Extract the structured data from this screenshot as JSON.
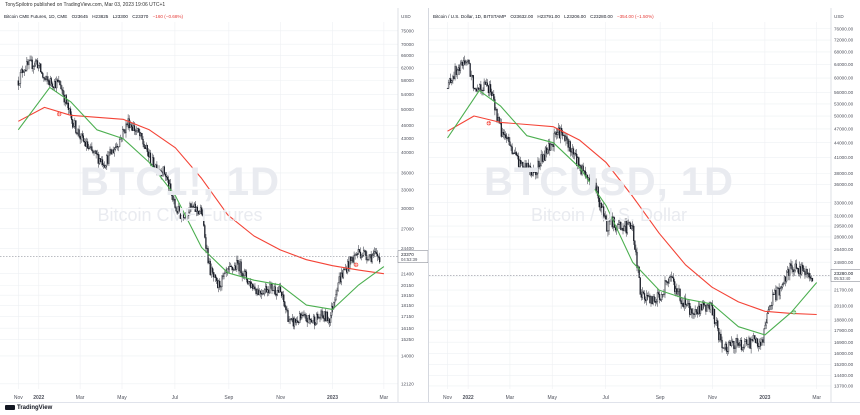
{
  "header": {
    "text": "TonySpilotro published on TradingView.com, Mar 03, 2023 19:06 UTC+1"
  },
  "footer": {
    "logo_text": "TradingView"
  },
  "colors": {
    "up": "#131722",
    "ma_fast": "#4caf50",
    "ma_slow": "#f44336",
    "grid": "#eef0f3"
  },
  "panels": [
    {
      "legend": {
        "name": "Bitcoin CME Futures, 1D, CME",
        "o": "O23645",
        "h": "H23825",
        "l": "L23300",
        "c": "C23370",
        "chg": "−160 (−0.68%)"
      },
      "watermark": {
        "symbol": "BTC1!, 1D",
        "description": "Bitcoin CME Futures"
      },
      "price_label": "23370",
      "countdown": "04:53:39"
    },
    {
      "legend": {
        "name": "Bitcoin / U.S. Dollar, 1D, BITSTAMP",
        "o": "O23632.00",
        "h": "H23791.00",
        "l": "L23206.00",
        "c": "C23280.00",
        "chg": "−354.00 (−1.50%)"
      },
      "watermark": {
        "symbol": "BTCUSD, 1D",
        "description": "Bitcoin / U.S. Dollar"
      },
      "price_label": "23280.00",
      "countdown": "05:53:40"
    }
  ],
  "chart_data": [
    {
      "type": "candlestick",
      "title": "Bitcoin CME Futures, 1D, CME",
      "currency": "USD",
      "y_scale": "log",
      "ylim": [
        11800,
        78500
      ],
      "y_ticks": [
        "75000",
        "70000",
        "66000",
        "62000",
        "58000",
        "54000",
        "50000",
        "46000",
        "43000",
        "40000",
        "36000",
        "33000",
        "30000",
        "27000",
        "24400",
        "21400",
        "20150",
        "19150",
        "18150",
        "17150",
        "16150",
        "15250",
        "14000",
        "12120"
      ],
      "x_ticks": [
        "Nov",
        "2022",
        "Mar",
        "May",
        "Jul",
        "Sep",
        "Nov",
        "2023",
        "Mar"
      ],
      "x_tick_pos": [
        0.0,
        0.39,
        1.18,
        1.98,
        2.99,
        4.02,
        5.01,
        6.0,
        6.98
      ],
      "close_path": [
        [
          0,
          58000
        ],
        [
          0.1,
          62000
        ],
        [
          0.25,
          63000
        ],
        [
          0.35,
          64000
        ],
        [
          0.5,
          58000
        ],
        [
          0.8,
          57000
        ],
        [
          1.0,
          48000
        ],
        [
          1.2,
          43000
        ],
        [
          1.4,
          40000
        ],
        [
          1.65,
          38000
        ],
        [
          1.9,
          42000
        ],
        [
          2.1,
          47000
        ],
        [
          2.3,
          44000
        ],
        [
          2.55,
          38000
        ],
        [
          2.8,
          36000
        ],
        [
          3.0,
          30000
        ],
        [
          3.1,
          29000
        ],
        [
          3.3,
          30000
        ],
        [
          3.5,
          29500
        ],
        [
          3.65,
          22000
        ],
        [
          3.8,
          20000
        ],
        [
          4.0,
          21500
        ],
        [
          4.2,
          22500
        ],
        [
          4.4,
          20500
        ],
        [
          4.6,
          19500
        ],
        [
          4.8,
          20000
        ],
        [
          5.0,
          19500
        ],
        [
          5.2,
          16500
        ],
        [
          5.4,
          17000
        ],
        [
          5.6,
          16800
        ],
        [
          5.8,
          17200
        ],
        [
          5.95,
          17000
        ],
        [
          6.1,
          20500
        ],
        [
          6.3,
          22500
        ],
        [
          6.5,
          24000
        ],
        [
          6.7,
          23500
        ],
        [
          6.9,
          23400
        ]
      ],
      "ma_fast": [
        [
          0,
          45000
        ],
        [
          0.6,
          56000
        ],
        [
          1.0,
          52000
        ],
        [
          1.5,
          45000
        ],
        [
          2.0,
          43000
        ],
        [
          2.5,
          38000
        ],
        [
          3.0,
          32000
        ],
        [
          3.5,
          24500
        ],
        [
          4.0,
          21500
        ],
        [
          4.5,
          20700
        ],
        [
          5.0,
          20200
        ],
        [
          5.5,
          18200
        ],
        [
          6.0,
          17800
        ],
        [
          6.5,
          20200
        ],
        [
          6.98,
          22200
        ]
      ],
      "ma_slow": [
        [
          0,
          47000
        ],
        [
          0.5,
          50500
        ],
        [
          1.0,
          48500
        ],
        [
          1.5,
          48000
        ],
        [
          2.0,
          47500
        ],
        [
          2.5,
          45000
        ],
        [
          3.0,
          41000
        ],
        [
          3.5,
          35000
        ],
        [
          4.0,
          29000
        ],
        [
          4.5,
          26000
        ],
        [
          5.0,
          24200
        ],
        [
          5.5,
          23000
        ],
        [
          6.0,
          22300
        ],
        [
          6.5,
          21800
        ],
        [
          6.98,
          21400
        ]
      ],
      "cross_markers": [
        [
          0.78,
          48800
        ],
        [
          6.45,
          22400
        ]
      ],
      "last_price": 23370
    },
    {
      "type": "candlestick",
      "title": "Bitcoin / U.S. Dollar, 1D, BITSTAMP",
      "currency": "USD",
      "y_scale": "log",
      "ylim": [
        13500,
        78500
      ],
      "y_ticks": [
        "76000.00",
        "72000.00",
        "68000.00",
        "64000.00",
        "60000.00",
        "56000.00",
        "53000.00",
        "50000.00",
        "47000.00",
        "44000.00",
        "41000.00",
        "38000.00",
        "36000.00",
        "33000.00",
        "31000.00",
        "29500.00",
        "28000.00",
        "26400.00",
        "24800.00",
        "23200.00",
        "21700.00",
        "20100.00",
        "18800.00",
        "17900.00",
        "16900.00",
        "16000.00",
        "15200.00",
        "14400.00",
        "13700.00"
      ],
      "x_ticks": [
        "Nov",
        "2022",
        "Mar",
        "May",
        "Jul",
        "Sep",
        "Nov",
        "2023",
        "Mar"
      ],
      "x_tick_pos": [
        0.0,
        0.39,
        1.18,
        1.98,
        2.99,
        4.02,
        5.01,
        6.0,
        6.98
      ],
      "close_path": [
        [
          0,
          57000
        ],
        [
          0.1,
          61000
        ],
        [
          0.25,
          63000
        ],
        [
          0.35,
          66000
        ],
        [
          0.5,
          58000
        ],
        [
          0.8,
          57500
        ],
        [
          1.0,
          47000
        ],
        [
          1.2,
          43000
        ],
        [
          1.4,
          39000
        ],
        [
          1.65,
          38500
        ],
        [
          1.9,
          42500
        ],
        [
          2.1,
          46500
        ],
        [
          2.3,
          43500
        ],
        [
          2.55,
          38500
        ],
        [
          2.8,
          35500
        ],
        [
          3.0,
          29500
        ],
        [
          3.1,
          30000
        ],
        [
          3.3,
          29500
        ],
        [
          3.5,
          29000
        ],
        [
          3.65,
          21500
        ],
        [
          3.8,
          20500
        ],
        [
          4.0,
          21000
        ],
        [
          4.2,
          23000
        ],
        [
          4.4,
          21000
        ],
        [
          4.6,
          19500
        ],
        [
          4.8,
          20000
        ],
        [
          5.0,
          19800
        ],
        [
          5.2,
          16500
        ],
        [
          5.4,
          16800
        ],
        [
          5.6,
          16700
        ],
        [
          5.8,
          17000
        ],
        [
          5.95,
          16800
        ],
        [
          6.1,
          20500
        ],
        [
          6.3,
          22000
        ],
        [
          6.5,
          24500
        ],
        [
          6.7,
          23800
        ],
        [
          6.9,
          23280
        ]
      ],
      "ma_fast": [
        [
          0,
          45000
        ],
        [
          0.6,
          56500
        ],
        [
          1.0,
          52500
        ],
        [
          1.5,
          45500
        ],
        [
          2.0,
          44000
        ],
        [
          2.5,
          39000
        ],
        [
          3.0,
          32500
        ],
        [
          3.5,
          24800
        ],
        [
          4.0,
          21700
        ],
        [
          4.5,
          20800
        ],
        [
          5.0,
          20300
        ],
        [
          5.5,
          18200
        ],
        [
          6.0,
          17500
        ],
        [
          6.5,
          19500
        ],
        [
          6.98,
          22500
        ]
      ],
      "ma_slow": [
        [
          0,
          46500
        ],
        [
          0.5,
          50000
        ],
        [
          1.0,
          48500
        ],
        [
          1.5,
          48000
        ],
        [
          2.0,
          47500
        ],
        [
          2.5,
          44500
        ],
        [
          3.0,
          40000
        ],
        [
          3.5,
          34000
        ],
        [
          4.0,
          28500
        ],
        [
          4.5,
          24500
        ],
        [
          5.0,
          22000
        ],
        [
          5.5,
          20500
        ],
        [
          6.0,
          19600
        ],
        [
          6.5,
          19400
        ],
        [
          6.98,
          19300
        ]
      ],
      "cross_markers": [
        [
          0.78,
          48300
        ],
        [
          6.55,
          19500
        ]
      ],
      "last_price": 23280
    }
  ]
}
